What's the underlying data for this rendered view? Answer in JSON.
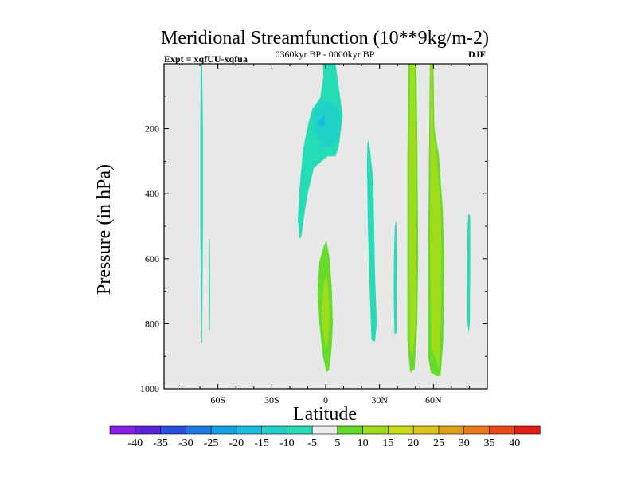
{
  "chart_data": {
    "type": "contour",
    "title": "Meridional Streamfunction (10**9kg/m-2)",
    "subtitle_left": "Expt = xqfUU-xqfua",
    "subtitle_center": "0360kyr BP - 0000kyr BP",
    "subtitle_right": "DJF",
    "xlabel": "Latitude",
    "ylabel": "Pressure (in hPa)",
    "xlim": [
      -90,
      90
    ],
    "ylim": [
      1000,
      0
    ],
    "y_inverted": true,
    "x_ticks": [
      {
        "value": -60,
        "label": "60S"
      },
      {
        "value": -30,
        "label": "30S"
      },
      {
        "value": 0,
        "label": "0"
      },
      {
        "value": 30,
        "label": "30N"
      },
      {
        "value": 60,
        "label": "60N"
      }
    ],
    "y_ticks": [
      {
        "value": 200,
        "label": "200"
      },
      {
        "value": 400,
        "label": "400"
      },
      {
        "value": 600,
        "label": "600"
      },
      {
        "value": 800,
        "label": "800"
      },
      {
        "value": 1000,
        "label": "1000"
      }
    ],
    "background_color": "#e8e8e8",
    "colorbar": {
      "levels": [
        "-40",
        "-35",
        "-30",
        "-25",
        "-20",
        "-15",
        "-10",
        "-5",
        "5",
        "10",
        "15",
        "20",
        "25",
        "30",
        "35",
        "40"
      ],
      "colors": [
        "#8a1ee6",
        "#5a20d8",
        "#2850e0",
        "#1e78e8",
        "#12a0e6",
        "#18bee0",
        "#20d2c8",
        "#26dcb4",
        "#ebebeb",
        "#66dc2a",
        "#a0dc1c",
        "#c8dc18",
        "#dcc418",
        "#e0a018",
        "#e87818",
        "#e84818",
        "#e01e14"
      ]
    },
    "regions": [
      {
        "name": "sh-high-lat-band",
        "level": -5,
        "points": [
          [
            -69.6,
            2
          ],
          [
            -68.8,
            2
          ],
          [
            -68.3,
            200
          ],
          [
            -68.3,
            500
          ],
          [
            -68.8,
            860
          ],
          [
            -69.3,
            860
          ],
          [
            -69.8,
            500
          ],
          [
            -69.8,
            200
          ]
        ]
      },
      {
        "name": "sh-high-lat-thin",
        "level": -5,
        "points": [
          [
            -64.9,
            540
          ],
          [
            -64.5,
            540
          ],
          [
            -64.3,
            700
          ],
          [
            -64.5,
            820
          ],
          [
            -64.9,
            820
          ],
          [
            -65.1,
            700
          ]
        ]
      },
      {
        "name": "tropical-upper-neg",
        "level": -5,
        "points": [
          [
            -1.5,
            0
          ],
          [
            5.5,
            0
          ],
          [
            7.5,
            80
          ],
          [
            9.5,
            160
          ],
          [
            7.5,
            250
          ],
          [
            5.5,
            285
          ],
          [
            1,
            285
          ],
          [
            -6.5,
            320
          ],
          [
            -10,
            400
          ],
          [
            -12,
            470
          ],
          [
            -13.5,
            530
          ],
          [
            -14.5,
            540
          ],
          [
            -15.5,
            480
          ],
          [
            -14.5,
            380
          ],
          [
            -12.5,
            260
          ],
          [
            -9.5,
            180
          ],
          [
            -7.5,
            140
          ],
          [
            -3,
            105
          ],
          [
            -1.3,
            40
          ]
        ]
      },
      {
        "name": "tropical-upper-neg-core",
        "level": -10,
        "points": [
          [
            -6,
            140
          ],
          [
            -2,
            115
          ],
          [
            2,
            115
          ],
          [
            7,
            135
          ],
          [
            8.5,
            165
          ],
          [
            7,
            235
          ],
          [
            3,
            255
          ],
          [
            -2,
            260
          ],
          [
            -6,
            210
          ],
          [
            -7.5,
            170
          ]
        ]
      },
      {
        "name": "tropical-upper-neg-inner",
        "level": -15,
        "points": [
          [
            -3.5,
            170
          ],
          [
            -0.5,
            160
          ],
          [
            0,
            180
          ],
          [
            -1.5,
            195
          ],
          [
            -4,
            190
          ]
        ]
      },
      {
        "name": "nh-subtropical-neg",
        "level": -5,
        "points": [
          [
            24,
            230
          ],
          [
            25,
            280
          ],
          [
            26.5,
            360
          ],
          [
            27,
            500
          ],
          [
            27.5,
            650
          ],
          [
            28.5,
            800
          ],
          [
            27.5,
            855
          ],
          [
            25.5,
            850
          ],
          [
            24.5,
            700
          ],
          [
            23.5,
            500
          ],
          [
            23,
            320
          ],
          [
            23.2,
            250
          ]
        ]
      },
      {
        "name": "nh-30-40-neg",
        "level": -5,
        "points": [
          [
            38.5,
            500
          ],
          [
            39.3,
            480
          ],
          [
            39.8,
            600
          ],
          [
            39.5,
            760
          ],
          [
            39.5,
            830
          ],
          [
            38.3,
            830
          ],
          [
            37.8,
            700
          ],
          [
            38,
            600
          ]
        ]
      },
      {
        "name": "nh-high-lat-neg",
        "level": -5,
        "points": [
          [
            79.5,
            460
          ],
          [
            80.5,
            470
          ],
          [
            80.5,
            600
          ],
          [
            80.3,
            800
          ],
          [
            79.5,
            830
          ],
          [
            78.8,
            780
          ],
          [
            78.8,
            600
          ],
          [
            79,
            500
          ]
        ]
      },
      {
        "name": "equatorial-low-pos",
        "level": 5,
        "points": [
          [
            0.5,
            545
          ],
          [
            2.2,
            600
          ],
          [
            3.5,
            700
          ],
          [
            4,
            800
          ],
          [
            3.3,
            880
          ],
          [
            2,
            940
          ],
          [
            0.5,
            950
          ],
          [
            -1.5,
            900
          ],
          [
            -3.5,
            800
          ],
          [
            -4.5,
            700
          ],
          [
            -3.5,
            610
          ],
          [
            -1,
            560
          ]
        ]
      },
      {
        "name": "equatorial-low-pos-core",
        "level": 10,
        "points": [
          [
            0.3,
            640
          ],
          [
            1.5,
            700
          ],
          [
            2.2,
            780
          ],
          [
            1.6,
            840
          ],
          [
            0.2,
            880
          ],
          [
            -1.5,
            820
          ],
          [
            -2.3,
            750
          ],
          [
            -1,
            680
          ]
        ]
      },
      {
        "name": "nh-45-pos",
        "level": 5,
        "points": [
          [
            46,
            0
          ],
          [
            50.5,
            0
          ],
          [
            51,
            200
          ],
          [
            51.5,
            600
          ],
          [
            51,
            800
          ],
          [
            49.5,
            940
          ],
          [
            47,
            950
          ],
          [
            45.5,
            850
          ],
          [
            45.5,
            600
          ],
          [
            45.5,
            300
          ]
        ]
      },
      {
        "name": "nh-45-pos-core",
        "level": 10,
        "points": [
          [
            47,
            0
          ],
          [
            49.5,
            0
          ],
          [
            50,
            200
          ],
          [
            50.5,
            600
          ],
          [
            50,
            800
          ],
          [
            48.5,
            900
          ],
          [
            47,
            880
          ],
          [
            46.5,
            600
          ],
          [
            46.5,
            300
          ]
        ]
      },
      {
        "name": "nh-60-pos",
        "level": 5,
        "points": [
          [
            58,
            0
          ],
          [
            60,
            0
          ],
          [
            60.5,
            200
          ],
          [
            63,
            280
          ],
          [
            65.2,
            450
          ],
          [
            66,
            600
          ],
          [
            65.5,
            850
          ],
          [
            64,
            960
          ],
          [
            61.5,
            960
          ],
          [
            58.5,
            950
          ],
          [
            57,
            900
          ],
          [
            57,
            600
          ],
          [
            57.5,
            300
          ]
        ]
      },
      {
        "name": "nh-60-pos-core",
        "level": 10,
        "points": [
          [
            58.3,
            0
          ],
          [
            59.5,
            0
          ],
          [
            59.8,
            200
          ],
          [
            62,
            300
          ],
          [
            64,
            450
          ],
          [
            64.5,
            600
          ],
          [
            64,
            800
          ],
          [
            63,
            940
          ],
          [
            61,
            900
          ],
          [
            59,
            880
          ],
          [
            58.2,
            600
          ],
          [
            58.3,
            300
          ]
        ]
      }
    ]
  }
}
